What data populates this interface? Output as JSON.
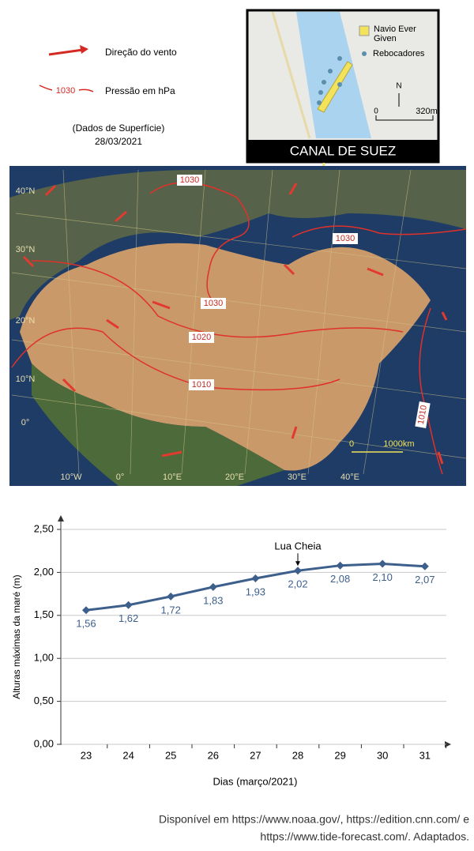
{
  "legend": {
    "wind": "Direção do vento",
    "isobar_sample": "1030",
    "pressure": "Pressão em hPa",
    "note": "(Dados de Superfície)",
    "date": "28/03/2021"
  },
  "inset": {
    "ship": [
      "Navio Ever",
      "Given"
    ],
    "tugs": "Rebocadores",
    "north": "N",
    "scale_start": "0",
    "scale_end": "320m",
    "title": "CANAL DE SUEZ"
  },
  "map": {
    "lat_labels": [
      "40°N",
      "30°N",
      "20°N",
      "10°N",
      "0°"
    ],
    "lon_labels": [
      "10°W",
      "0°",
      "10°E",
      "20°E",
      "30°E",
      "40°E"
    ],
    "isobar_labels": [
      "1030",
      "1030",
      "1030",
      "1020",
      "1010",
      "1010"
    ],
    "scale_start": "0",
    "scale_end": "1000km"
  },
  "chart_data": {
    "type": "line",
    "y_label": "Alturas  máximas da maré (m)",
    "x_label": "Dias (março/2021)",
    "categories": [
      "23",
      "24",
      "25",
      "26",
      "27",
      "28",
      "29",
      "30",
      "31"
    ],
    "values": [
      1.56,
      1.62,
      1.72,
      1.83,
      1.93,
      2.02,
      2.08,
      2.1,
      2.07
    ],
    "value_labels": [
      "1,56",
      "1,62",
      "1,72",
      "1,83",
      "1,93",
      "2,02",
      "2,08",
      "2,10",
      "2,07"
    ],
    "color": "#3d5f8c",
    "ylim": [
      0,
      2.5
    ],
    "yticks": [
      {
        "value": 0,
        "label": "0,00"
      },
      {
        "value": 0.5,
        "label": "0,50"
      },
      {
        "value": 1,
        "label": "1,00"
      },
      {
        "value": 1.5,
        "label": "1,50"
      },
      {
        "value": 2,
        "label": "2,00"
      },
      {
        "value": 2.5,
        "label": "2,50"
      }
    ],
    "grid": true,
    "annotations": [
      {
        "text": "Lua Cheia",
        "category": "28"
      }
    ]
  },
  "source": [
    "Disponível em https://www.noaa.gov/, https://edition.cnn.com/ e",
    "https://www.tide-forecast.com/. Adaptados."
  ]
}
